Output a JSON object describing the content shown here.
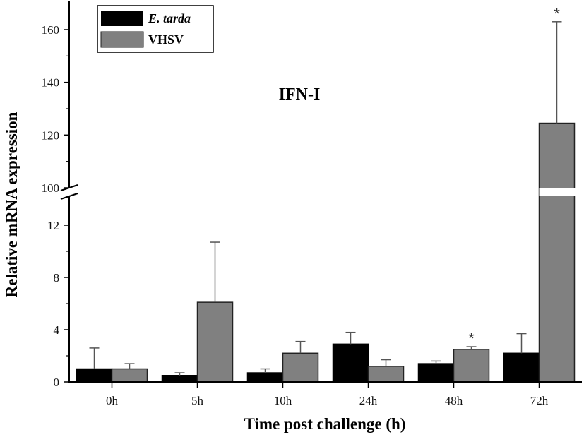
{
  "chart_data": {
    "type": "bar",
    "title": "IFN-I",
    "xlabel": "Time post challenge (h)",
    "ylabel": "Relative mRNA expression",
    "categories": [
      "0h",
      "5h",
      "10h",
      "24h",
      "48h",
      "72h"
    ],
    "y_axis_break": {
      "lower_range": [
        0,
        14
      ],
      "upper_range": [
        100,
        170
      ]
    },
    "yticks_lower": [
      "0",
      "4",
      "8",
      "12"
    ],
    "yticks_upper": [
      "100",
      "120",
      "140",
      "160"
    ],
    "legend_position": "top-left",
    "series": [
      {
        "name": "E. tarda",
        "color": "#000000",
        "values": [
          1.0,
          0.5,
          0.7,
          2.9,
          1.4,
          2.2
        ],
        "errors": [
          1.6,
          0.2,
          0.3,
          0.9,
          0.2,
          1.5
        ]
      },
      {
        "name": "VHSV",
        "color": "#808080",
        "values": [
          1.0,
          6.1,
          2.2,
          1.2,
          2.5,
          124.5
        ],
        "errors": [
          0.4,
          4.6,
          0.9,
          0.5,
          0.2,
          38.5
        ]
      }
    ],
    "annotations": [
      {
        "text": "*",
        "category": "48h",
        "series": "VHSV"
      },
      {
        "text": "*",
        "category": "72h",
        "series": "VHSV"
      }
    ]
  }
}
